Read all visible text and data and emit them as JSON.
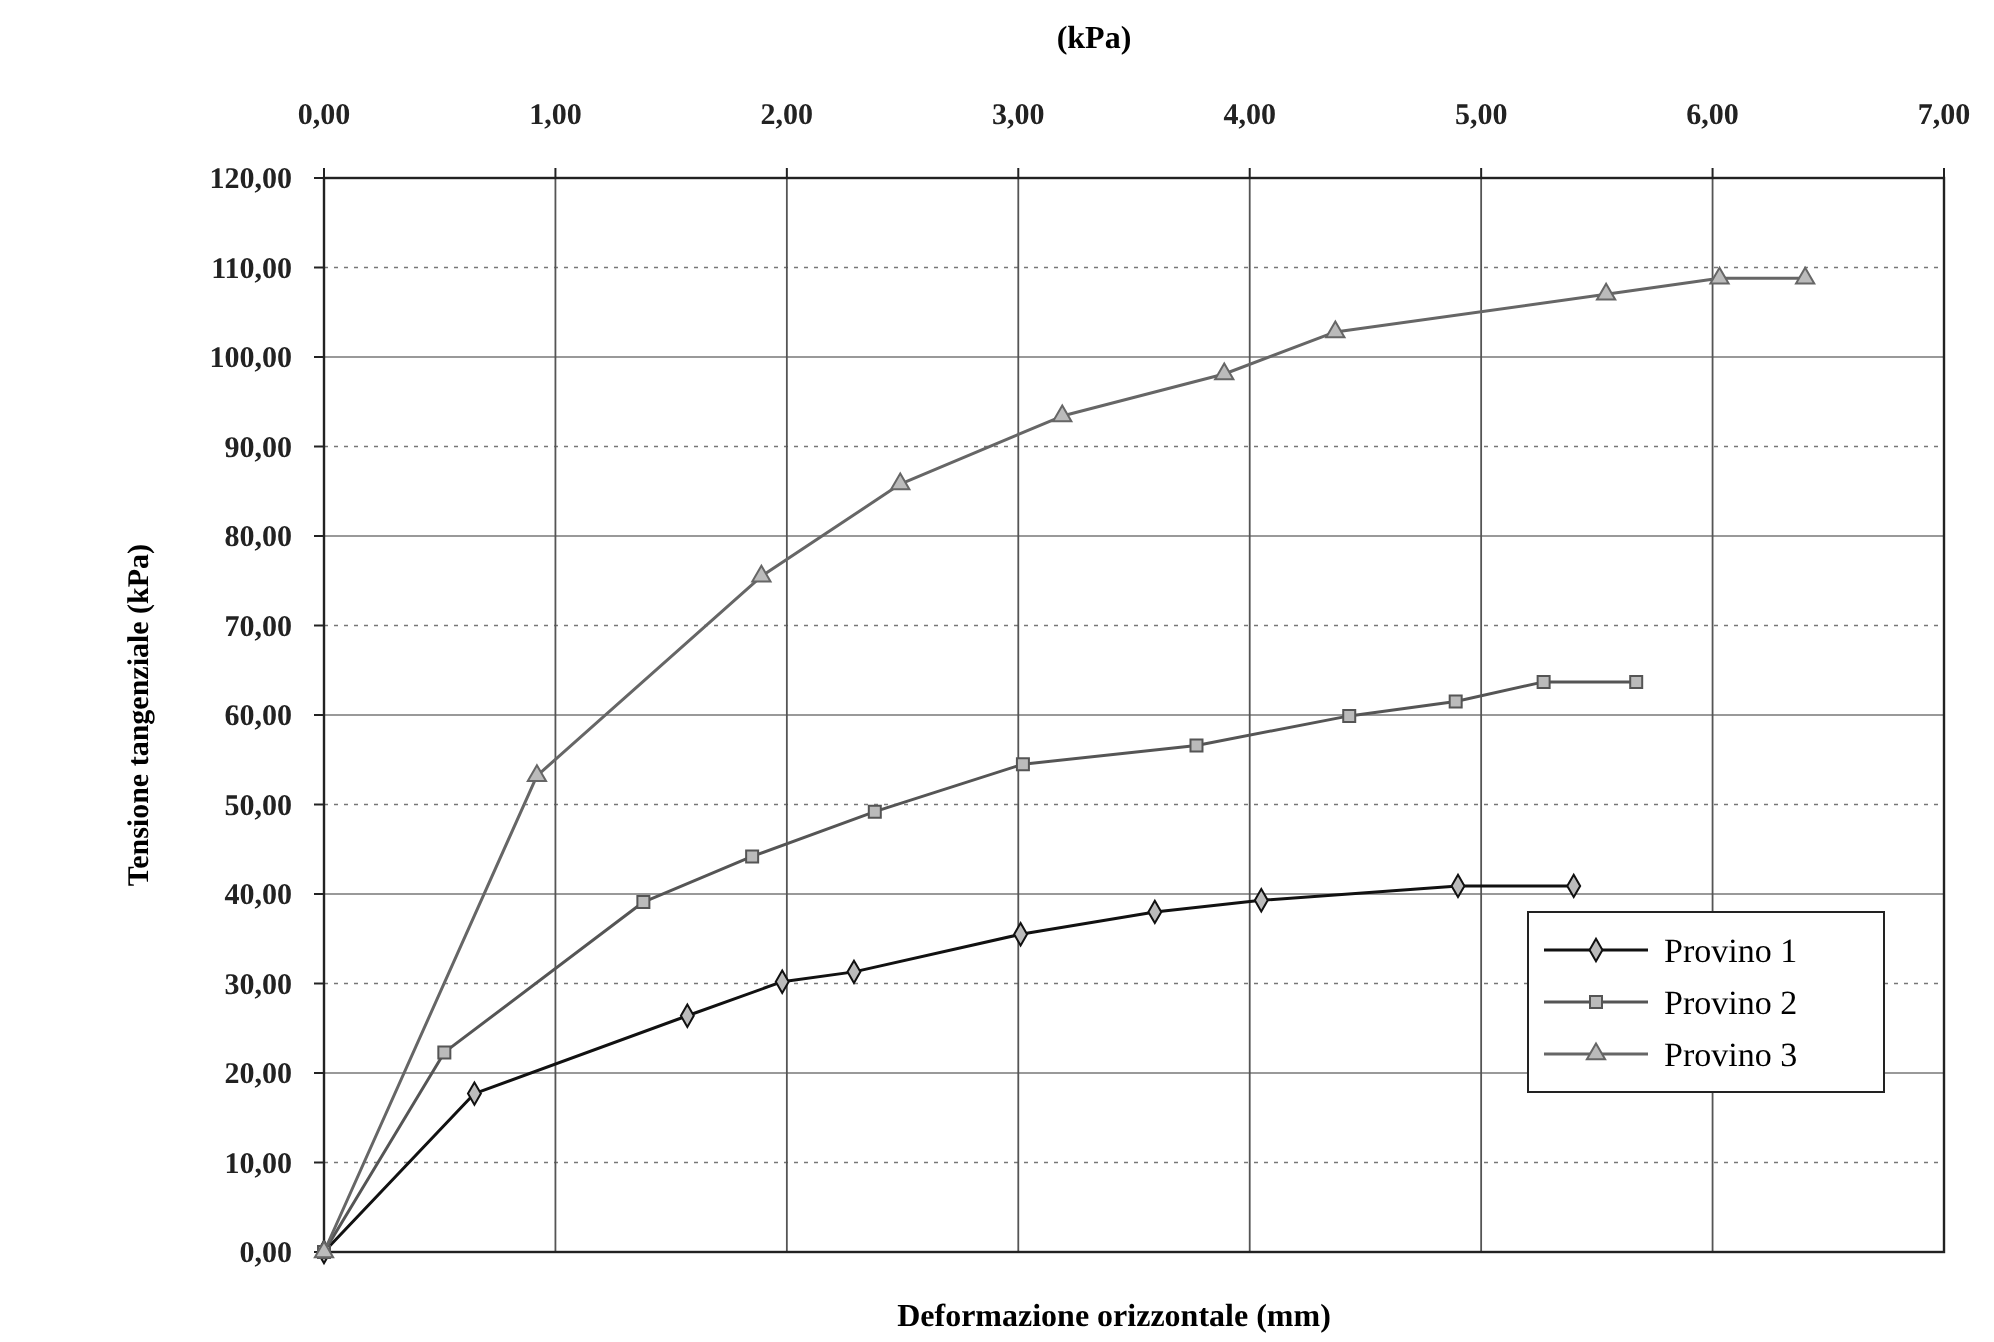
{
  "chart_data": {
    "type": "line",
    "title": "(kPa)",
    "xlabel": "Deformazione orizzontale (mm)",
    "ylabel": "Tensione tangenziale (kPa)",
    "xlim": [
      0,
      7
    ],
    "xticks": [
      {
        "value": 0,
        "label": "0,00"
      },
      {
        "value": 1,
        "label": "1,00"
      },
      {
        "value": 2,
        "label": "2,00"
      },
      {
        "value": 3,
        "label": "3,00"
      },
      {
        "value": 4,
        "label": "4,00"
      },
      {
        "value": 5,
        "label": "5,00"
      },
      {
        "value": 6,
        "label": "6,00"
      },
      {
        "value": 7,
        "label": "7,00"
      }
    ],
    "ylim": [
      0,
      120
    ],
    "yticks": [
      {
        "value": 0,
        "label": "0,00"
      },
      {
        "value": 10,
        "label": "10,00"
      },
      {
        "value": 20,
        "label": "20,00"
      },
      {
        "value": 30,
        "label": "30,00"
      },
      {
        "value": 40,
        "label": "40,00"
      },
      {
        "value": 50,
        "label": "50,00"
      },
      {
        "value": 60,
        "label": "60,00"
      },
      {
        "value": 70,
        "label": "70,00"
      },
      {
        "value": 80,
        "label": "80,00"
      },
      {
        "value": 90,
        "label": "90,00"
      },
      {
        "value": 100,
        "label": "100,00"
      },
      {
        "value": 110,
        "label": "110,00"
      },
      {
        "value": 120,
        "label": "120,00"
      }
    ],
    "grid": true,
    "legend": "bottom right",
    "series": [
      {
        "name": "Provino 1",
        "color": "#111111",
        "marker": "diamond",
        "x": [
          0,
          0.65,
          1.57,
          1.98,
          2.29,
          3.01,
          3.59,
          4.05,
          4.9,
          5.4
        ],
        "values": [
          0,
          17.7,
          26.4,
          30.2,
          31.3,
          35.5,
          38,
          39.3,
          40.9,
          40.9
        ]
      },
      {
        "name": "Provino 2",
        "color": "#555555",
        "marker": "square",
        "x": [
          0,
          0.52,
          1.38,
          1.85,
          2.38,
          3.02,
          3.77,
          4.43,
          4.89,
          5.27,
          5.67
        ],
        "values": [
          0,
          22.3,
          39.1,
          44.2,
          49.2,
          54.5,
          56.6,
          59.9,
          61.5,
          63.7,
          63.7
        ]
      },
      {
        "name": "Provino 3",
        "color": "#666666",
        "marker": "triangle",
        "x": [
          0,
          0.92,
          1.89,
          2.49,
          3.19,
          3.89,
          4.37,
          5.54,
          6.03,
          6.4
        ],
        "values": [
          0,
          53.2,
          75.5,
          85.8,
          93.4,
          98.1,
          102.8,
          107,
          108.8,
          108.8
        ]
      }
    ]
  }
}
